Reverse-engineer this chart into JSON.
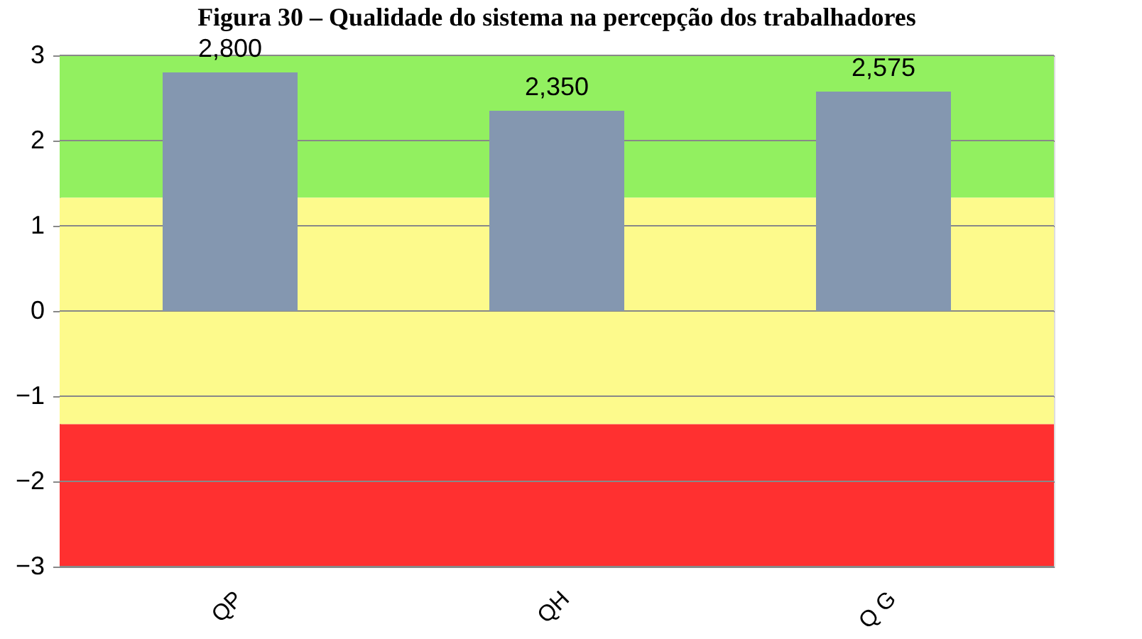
{
  "chart_data": {
    "type": "bar",
    "title": "Figura 30 – Qualidade do sistema na percepção dos trabalhadores",
    "categories": [
      "QP",
      "QH",
      "Q G"
    ],
    "series": [
      {
        "color": "#8497b0",
        "values": [
          2.8,
          2.35,
          2.575
        ]
      }
    ],
    "value_labels": [
      "2,800",
      "2,350",
      "2,575"
    ],
    "ylim": [
      -3,
      3
    ],
    "yticks": [
      -3,
      -2,
      -1,
      0,
      1,
      2,
      3
    ],
    "grid": "y",
    "bands": [
      {
        "axis": "y",
        "from": 1.33,
        "to": 3,
        "color": "#92f060"
      },
      {
        "axis": "y",
        "from": -1.33,
        "to": 1.33,
        "color": "#fdfa8c"
      },
      {
        "axis": "y",
        "from": -3,
        "to": -1.33,
        "color": "#ff3030"
      }
    ]
  }
}
